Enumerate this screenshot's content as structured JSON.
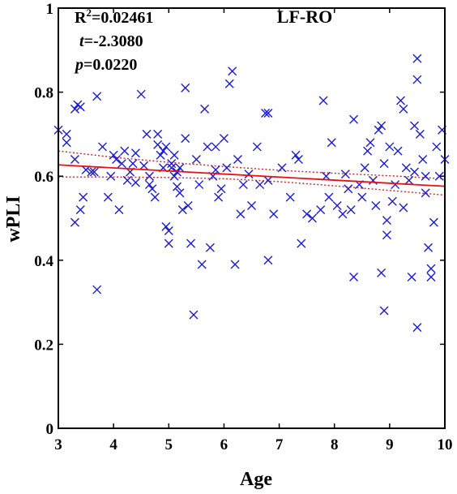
{
  "chart_data": {
    "type": "scatter",
    "title": "LF-RO",
    "xlabel": "Age",
    "ylabel": "wPLI",
    "xlim": [
      3,
      10
    ],
    "ylim": [
      0,
      1
    ],
    "xticks": [
      "3",
      "4",
      "5",
      "6",
      "7",
      "8",
      "9",
      "10"
    ],
    "yticks": [
      "0",
      "0.2",
      "0.4",
      "0.6",
      "0.8",
      "1"
    ],
    "stats": {
      "r2_label": "R",
      "r2_sup": "2",
      "r2_value": "=0.02461",
      "t_label": "t",
      "t_value": "=-2.3080",
      "p_label": "p",
      "p_value": "=0.0220"
    },
    "colors": {
      "points": "#1a1ad6",
      "fit": "#e81010",
      "ci": "#d42020",
      "axis": "#000000"
    },
    "marker": "x",
    "fit_line": {
      "x": [
        3,
        10
      ],
      "y": [
        0.627,
        0.576
      ]
    },
    "ci_upper": {
      "x": [
        3,
        4,
        5,
        6,
        7,
        8,
        9,
        10
      ],
      "y": [
        0.66,
        0.645,
        0.633,
        0.623,
        0.614,
        0.607,
        0.601,
        0.594
      ]
    },
    "ci_lower": {
      "x": [
        3,
        4,
        5,
        6,
        7,
        8,
        9,
        10
      ],
      "y": [
        0.598,
        0.598,
        0.597,
        0.594,
        0.587,
        0.577,
        0.566,
        0.555
      ]
    },
    "points": [
      [
        3.0,
        0.71
      ],
      [
        3.15,
        0.7
      ],
      [
        3.15,
        0.68
      ],
      [
        3.3,
        0.76
      ],
      [
        3.35,
        0.77
      ],
      [
        3.4,
        0.765
      ],
      [
        3.3,
        0.64
      ],
      [
        3.3,
        0.49
      ],
      [
        3.4,
        0.52
      ],
      [
        3.45,
        0.55
      ],
      [
        3.6,
        0.61
      ],
      [
        3.65,
        0.61
      ],
      [
        3.7,
        0.79
      ],
      [
        3.7,
        0.33
      ],
      [
        3.8,
        0.67
      ],
      [
        3.9,
        0.55
      ],
      [
        3.95,
        0.6
      ],
      [
        4.0,
        0.65
      ],
      [
        4.05,
        0.64
      ],
      [
        4.1,
        0.52
      ],
      [
        4.15,
        0.63
      ],
      [
        4.2,
        0.66
      ],
      [
        4.25,
        0.59
      ],
      [
        4.3,
        0.61
      ],
      [
        4.35,
        0.63
      ],
      [
        4.4,
        0.585
      ],
      [
        4.4,
        0.655
      ],
      [
        4.5,
        0.795
      ],
      [
        4.6,
        0.7
      ],
      [
        4.65,
        0.6
      ],
      [
        4.65,
        0.58
      ],
      [
        4.7,
        0.57
      ],
      [
        4.75,
        0.55
      ],
      [
        4.8,
        0.7
      ],
      [
        4.85,
        0.65
      ],
      [
        4.9,
        0.62
      ],
      [
        4.9,
        0.66
      ],
      [
        4.95,
        0.67
      ],
      [
        4.95,
        0.48
      ],
      [
        5.0,
        0.47
      ],
      [
        5.0,
        0.44
      ],
      [
        5.05,
        0.63
      ],
      [
        5.05,
        0.62
      ],
      [
        5.1,
        0.65
      ],
      [
        5.1,
        0.6
      ],
      [
        5.15,
        0.61
      ],
      [
        5.2,
        0.62
      ],
      [
        5.2,
        0.56
      ],
      [
        5.25,
        0.52
      ],
      [
        5.3,
        0.81
      ],
      [
        5.3,
        0.69
      ],
      [
        5.35,
        0.53
      ],
      [
        5.4,
        0.44
      ],
      [
        5.45,
        0.27
      ],
      [
        5.5,
        0.64
      ],
      [
        5.55,
        0.58
      ],
      [
        5.6,
        0.39
      ],
      [
        5.65,
        0.76
      ],
      [
        5.7,
        0.67
      ],
      [
        5.75,
        0.43
      ],
      [
        5.8,
        0.6
      ],
      [
        5.85,
        0.67
      ],
      [
        5.9,
        0.55
      ],
      [
        5.95,
        0.57
      ],
      [
        6.0,
        0.69
      ],
      [
        6.05,
        0.62
      ],
      [
        6.1,
        0.82
      ],
      [
        6.15,
        0.85
      ],
      [
        6.2,
        0.39
      ],
      [
        6.25,
        0.64
      ],
      [
        6.3,
        0.51
      ],
      [
        6.35,
        0.58
      ],
      [
        6.5,
        0.53
      ],
      [
        6.6,
        0.67
      ],
      [
        6.65,
        0.58
      ],
      [
        6.75,
        0.75
      ],
      [
        6.8,
        0.75
      ],
      [
        6.8,
        0.4
      ],
      [
        6.8,
        0.59
      ],
      [
        6.9,
        0.51
      ],
      [
        7.2,
        0.55
      ],
      [
        7.3,
        0.65
      ],
      [
        7.35,
        0.64
      ],
      [
        7.4,
        0.44
      ],
      [
        7.5,
        0.51
      ],
      [
        7.6,
        0.5
      ],
      [
        7.75,
        0.52
      ],
      [
        7.8,
        0.78
      ],
      [
        7.85,
        0.6
      ],
      [
        7.9,
        0.55
      ],
      [
        7.95,
        0.68
      ],
      [
        8.05,
        0.53
      ],
      [
        8.15,
        0.51
      ],
      [
        8.25,
        0.57
      ],
      [
        8.3,
        0.52
      ],
      [
        8.35,
        0.735
      ],
      [
        8.35,
        0.36
      ],
      [
        8.45,
        0.58
      ],
      [
        8.5,
        0.55
      ],
      [
        8.55,
        0.62
      ],
      [
        8.6,
        0.66
      ],
      [
        8.65,
        0.68
      ],
      [
        8.7,
        0.59
      ],
      [
        8.75,
        0.53
      ],
      [
        8.8,
        0.71
      ],
      [
        8.85,
        0.37
      ],
      [
        8.85,
        0.72
      ],
      [
        8.9,
        0.63
      ],
      [
        8.9,
        0.28
      ],
      [
        8.95,
        0.46
      ],
      [
        9.0,
        0.67
      ],
      [
        9.05,
        0.54
      ],
      [
        9.1,
        0.58
      ],
      [
        9.15,
        0.66
      ],
      [
        9.2,
        0.78
      ],
      [
        9.25,
        0.76
      ],
      [
        9.3,
        0.62
      ],
      [
        9.35,
        0.59
      ],
      [
        9.4,
        0.36
      ],
      [
        9.45,
        0.72
      ],
      [
        9.45,
        0.61
      ],
      [
        9.5,
        0.88
      ],
      [
        9.5,
        0.83
      ],
      [
        9.5,
        0.24
      ],
      [
        9.55,
        0.7
      ],
      [
        9.6,
        0.64
      ],
      [
        9.65,
        0.6
      ],
      [
        9.65,
        0.56
      ],
      [
        9.7,
        0.43
      ],
      [
        9.75,
        0.38
      ],
      [
        9.75,
        0.36
      ],
      [
        9.8,
        0.49
      ],
      [
        9.85,
        0.67
      ],
      [
        9.9,
        0.6
      ],
      [
        9.95,
        0.71
      ],
      [
        10.0,
        0.64
      ],
      [
        4.55,
        0.625
      ],
      [
        5.85,
        0.615
      ],
      [
        7.05,
        0.62
      ],
      [
        8.2,
        0.605
      ],
      [
        3.5,
        0.615
      ],
      [
        4.8,
        0.675
      ],
      [
        6.45,
        0.605
      ],
      [
        9.25,
        0.525
      ],
      [
        5.15,
        0.575
      ],
      [
        8.95,
        0.495
      ]
    ]
  }
}
